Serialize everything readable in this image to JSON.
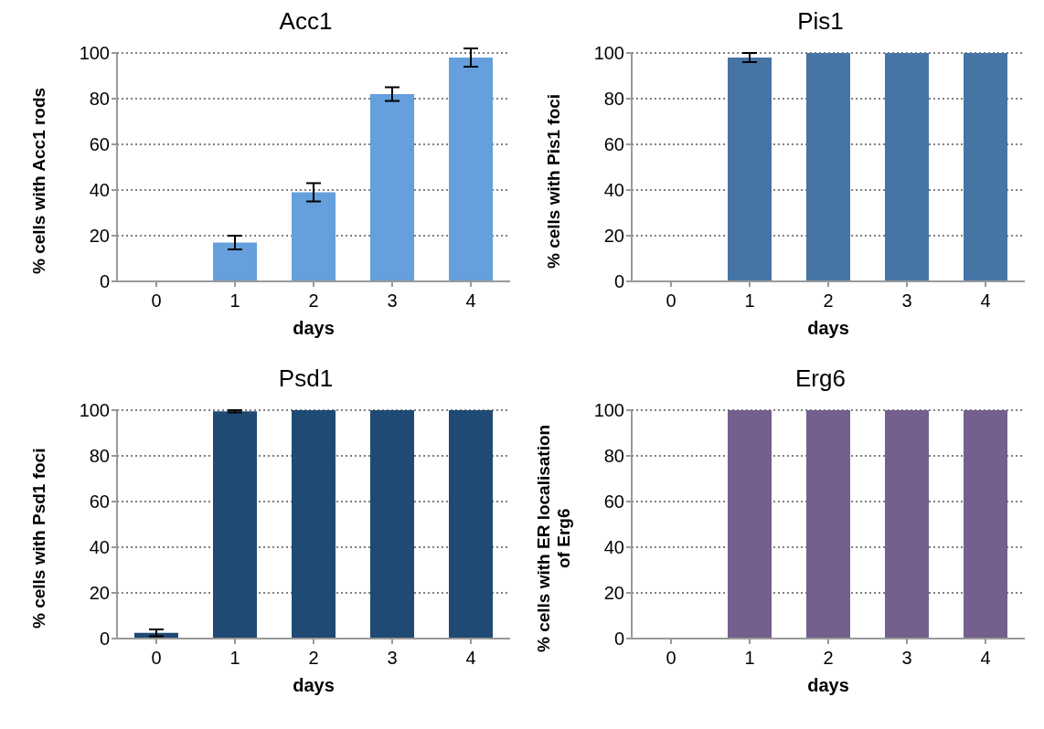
{
  "chart_data": [
    {
      "type": "bar",
      "title": "Acc1",
      "xlabel": "days",
      "ylabel": "% cells with Acc1 rods",
      "categories": [
        "0",
        "1",
        "2",
        "3",
        "4"
      ],
      "values": [
        0,
        17,
        39,
        82,
        98
      ],
      "errors": [
        null,
        3,
        4,
        3,
        4
      ],
      "color": "#659fdc",
      "ylim": [
        0,
        100
      ],
      "yticks": [
        0,
        20,
        40,
        60,
        80,
        100
      ],
      "grid": "y"
    },
    {
      "type": "bar",
      "title": "Pis1",
      "xlabel": "days",
      "ylabel": "% cells with Pis1 foci",
      "categories": [
        "0",
        "1",
        "2",
        "3",
        "4"
      ],
      "values": [
        0,
        98,
        100,
        100,
        100
      ],
      "errors": [
        null,
        2,
        null,
        null,
        null
      ],
      "color": "#4674a5",
      "ylim": [
        0,
        100
      ],
      "yticks": [
        0,
        20,
        40,
        60,
        80,
        100
      ],
      "grid": "y"
    },
    {
      "type": "bar",
      "title": "Psd1",
      "xlabel": "days",
      "ylabel": "% cells with Psd1 foci",
      "categories": [
        "0",
        "1",
        "2",
        "3",
        "4"
      ],
      "values": [
        2.5,
        99.5,
        100,
        100,
        100
      ],
      "errors": [
        1.5,
        0.5,
        null,
        null,
        null
      ],
      "color": "#1f4a73",
      "ylim": [
        0,
        100
      ],
      "yticks": [
        0,
        20,
        40,
        60,
        80,
        100
      ],
      "grid": "y"
    },
    {
      "type": "bar",
      "title": "Erg6",
      "xlabel": "days",
      "ylabel": "% cells with ER localisation of Erg6",
      "categories": [
        "0",
        "1",
        "2",
        "3",
        "4"
      ],
      "values": [
        0,
        100,
        100,
        100,
        100
      ],
      "color": "#745f8d",
      "ylim": [
        0,
        100
      ],
      "yticks": [
        0,
        20,
        40,
        60,
        80,
        100
      ],
      "grid": "y"
    }
  ]
}
